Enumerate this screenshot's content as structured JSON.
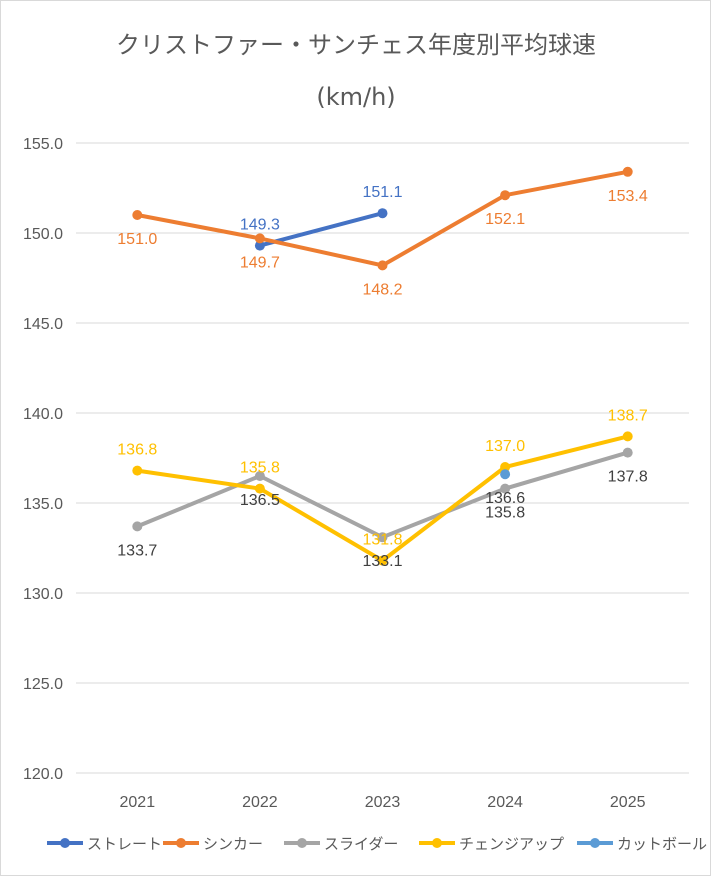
{
  "chart_data": {
    "type": "line",
    "title": "クリストファー・サンチェス年度別平均球速",
    "subtitle": "(km/h)",
    "categories": [
      "2021",
      "2022",
      "2023",
      "2024",
      "2025"
    ],
    "y_ticks": [
      "155.0",
      "150.0",
      "145.0",
      "140.0",
      "135.0",
      "130.0",
      "125.0",
      "120.0"
    ],
    "ylim": [
      120,
      155
    ],
    "grid": true,
    "legend_position": "bottom",
    "series": [
      {
        "name": "ストレート",
        "color": "#4472C4",
        "values": [
          null,
          149.3,
          151.1,
          null,
          null
        ],
        "labels": [
          "",
          "149.3",
          "151.1",
          "",
          ""
        ]
      },
      {
        "name": "シンカー",
        "color": "#ED7D31",
        "values": [
          151.0,
          149.7,
          148.2,
          152.1,
          153.4
        ],
        "labels": [
          "151.0",
          "149.7",
          "148.2",
          "152.1",
          "153.4"
        ]
      },
      {
        "name": "スライダー",
        "color": "#A5A5A5",
        "values": [
          133.7,
          136.5,
          133.1,
          135.8,
          137.8
        ],
        "labels": [
          "133.7",
          "136.5",
          "133.1",
          "135.8",
          "137.8"
        ]
      },
      {
        "name": "チェンジアップ",
        "color": "#FFC000",
        "values": [
          136.8,
          135.8,
          131.8,
          137.0,
          138.7
        ],
        "labels": [
          "136.8",
          "135.8",
          "131.8",
          "137.0",
          "138.7"
        ]
      },
      {
        "name": "カットボール",
        "color": "#5B9BD5",
        "values": [
          null,
          null,
          null,
          136.6,
          null
        ],
        "labels": [
          "",
          "",
          "",
          "136.6",
          ""
        ]
      }
    ]
  }
}
